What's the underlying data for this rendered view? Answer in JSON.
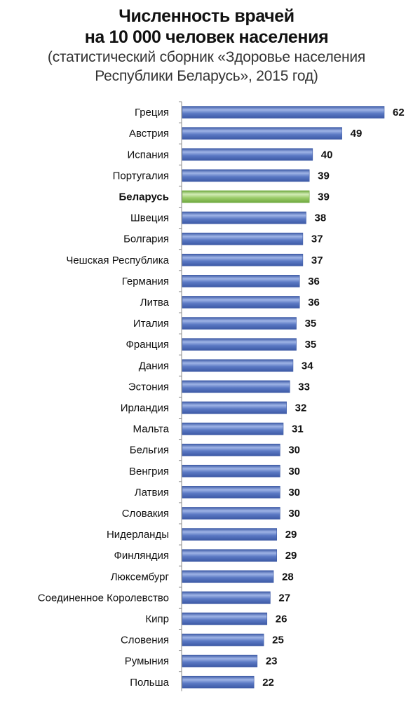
{
  "title": {
    "line1": "Численность врачей",
    "line2": "на 10 000 человек населения",
    "sub1": "(статистический сборник «Здоровье населения",
    "sub2": "Республики Беларусь», 2015 год)"
  },
  "colors": {
    "bar": "#5b79c4",
    "bar_dark": "#3d5aa6",
    "bar_light": "#9fb4e6",
    "highlight": "#9ccc6a",
    "highlight_dark": "#6ea83e",
    "highlight_light": "#d3ecb6",
    "axis": "#888888"
  },
  "chart_data": {
    "type": "bar",
    "orientation": "horizontal",
    "categories": [
      "Греция",
      "Австрия",
      "Испания",
      "Португалия",
      "Беларусь",
      "Швеция",
      "Болгария",
      "Чешская Республика",
      "Германия",
      "Литва",
      "Италия",
      "Франция",
      "Дания",
      "Эстония",
      "Ирландия",
      "Мальта",
      "Бельгия",
      "Венгрия",
      "Латвия",
      "Словакия",
      "Нидерланды",
      "Финляндия",
      "Люксембург",
      "Соединенное Королевство",
      "Кипр",
      "Словения",
      "Румыния",
      "Польша"
    ],
    "values": [
      62,
      49,
      40,
      39,
      39,
      38,
      37,
      37,
      36,
      36,
      35,
      35,
      34,
      33,
      32,
      31,
      30,
      30,
      30,
      30,
      29,
      29,
      28,
      27,
      26,
      25,
      23,
      22
    ],
    "highlight": "Беларусь",
    "xlim": [
      0,
      62
    ],
    "grid": false
  }
}
